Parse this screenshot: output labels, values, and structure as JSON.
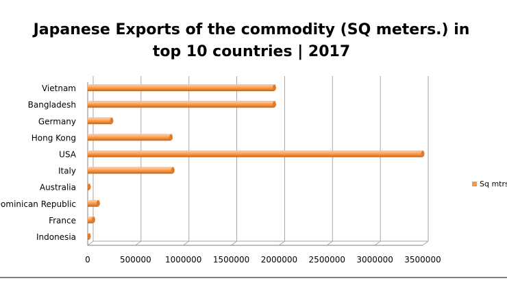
{
  "chart_data": {
    "type": "bar",
    "orientation": "horizontal",
    "title_lines": [
      "Japanese Exports of the commodity (SQ meters.) in",
      "top 10 countries | 2017"
    ],
    "categories": [
      "Vietnam",
      "Bangladesh",
      "Germany",
      "Hong Kong",
      "USA",
      "Italy",
      "Australia",
      "Dominican Republic",
      "France",
      "Indonesia"
    ],
    "series": [
      {
        "name": "Sq mtrs",
        "values": [
          1950000,
          1950000,
          250000,
          870000,
          3500000,
          890000,
          10000,
          110000,
          60000,
          15000
        ]
      }
    ],
    "x_ticks": [
      "0",
      "500000",
      "1000000",
      "1500000",
      "2000000",
      "2500000",
      "3000000",
      "3500000"
    ],
    "xlim": [
      0,
      3500000
    ],
    "grid": true,
    "legend_position": "right",
    "colors": {
      "bar": "#f79646",
      "bar_dark": "#c0641c",
      "grid": "#a6a6a6",
      "axis": "#7f7f7f"
    }
  }
}
